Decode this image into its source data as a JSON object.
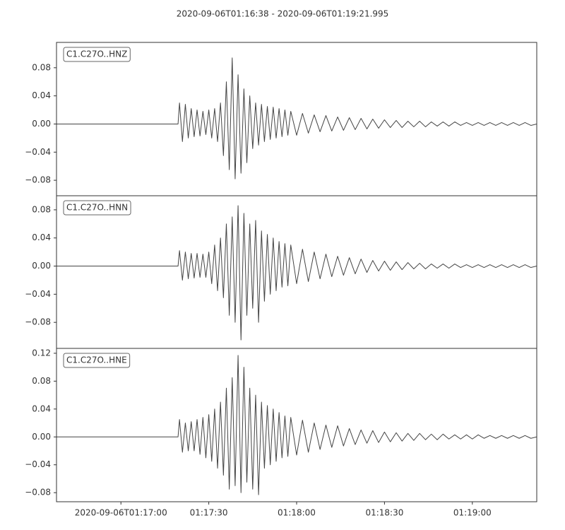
{
  "title": "2020-09-06T01:16:38  -  2020-09-06T01:19:21.995",
  "chart_data": [
    {
      "type": "line",
      "title": "C1.C27O..HNZ",
      "color": "#444444",
      "x": [
        0,
        41.5,
        42,
        43,
        44,
        45,
        46,
        47,
        48,
        49,
        50,
        51,
        52,
        53,
        54,
        55,
        56,
        57,
        58,
        59,
        60,
        61,
        62,
        63,
        64,
        65,
        66,
        67,
        68,
        69,
        70,
        71,
        72,
        73,
        74,
        75,
        76,
        77,
        78,
        79,
        80,
        82,
        84,
        86,
        88,
        90,
        92,
        94,
        96,
        98,
        100,
        102,
        104,
        106,
        108,
        110,
        112,
        114,
        116,
        118,
        120,
        122,
        124,
        126,
        128,
        130,
        132,
        134,
        136,
        138,
        140,
        142,
        144,
        146,
        148,
        150,
        152,
        154,
        156,
        158,
        160,
        162,
        163.995
      ],
      "values": [
        0,
        0,
        0.03,
        -0.025,
        0.028,
        -0.02,
        0.022,
        -0.018,
        0.02,
        -0.017,
        0.018,
        -0.015,
        0.02,
        -0.02,
        0.022,
        -0.025,
        0.03,
        -0.045,
        0.06,
        -0.065,
        0.094,
        -0.078,
        0.07,
        -0.07,
        0.05,
        -0.055,
        0.04,
        -0.035,
        0.03,
        -0.03,
        0.028,
        -0.025,
        0.025,
        -0.022,
        0.024,
        -0.02,
        0.022,
        -0.018,
        0.02,
        -0.016,
        0.018,
        -0.016,
        0.015,
        -0.013,
        0.013,
        -0.011,
        0.012,
        -0.01,
        0.01,
        -0.009,
        0.009,
        -0.008,
        0.008,
        -0.007,
        0.007,
        -0.006,
        0.006,
        -0.005,
        0.005,
        -0.005,
        0.004,
        -0.004,
        0.004,
        -0.004,
        0.003,
        -0.003,
        0.003,
        -0.003,
        0.003,
        -0.002,
        0.002,
        -0.002,
        0.002,
        -0.002,
        0.002,
        -0.002,
        0.002,
        -0.002,
        0.002,
        -0.002,
        0.002,
        -0.002,
        0
      ],
      "xlim": [
        0,
        163.995
      ],
      "ylim": [
        -0.102,
        0.116
      ],
      "yticks": [
        {
          "value": -0.08,
          "label": "−0.08"
        },
        {
          "value": -0.04,
          "label": "−0.04"
        },
        {
          "value": 0,
          "label": "0.00"
        },
        {
          "value": 0.04,
          "label": "0.04"
        },
        {
          "value": 0.08,
          "label": "0.08"
        }
      ]
    },
    {
      "type": "line",
      "title": "C1.C27O..HNN",
      "color": "#444444",
      "x": [
        0,
        41.5,
        42,
        43,
        44,
        45,
        46,
        47,
        48,
        49,
        50,
        51,
        52,
        53,
        54,
        55,
        56,
        57,
        58,
        59,
        60,
        61,
        62,
        63,
        64,
        65,
        66,
        67,
        68,
        69,
        70,
        71,
        72,
        73,
        74,
        75,
        76,
        77,
        78,
        79,
        80,
        82,
        84,
        86,
        88,
        90,
        92,
        94,
        96,
        98,
        100,
        102,
        104,
        106,
        108,
        110,
        112,
        114,
        116,
        118,
        120,
        122,
        124,
        126,
        128,
        130,
        132,
        134,
        136,
        138,
        140,
        142,
        144,
        146,
        148,
        150,
        152,
        154,
        156,
        158,
        160,
        162,
        163.995
      ],
      "values": [
        0,
        0,
        0.022,
        -0.02,
        0.02,
        -0.018,
        0.018,
        -0.017,
        0.018,
        -0.016,
        0.017,
        -0.016,
        0.02,
        -0.025,
        0.03,
        -0.035,
        0.04,
        -0.045,
        0.06,
        -0.07,
        0.07,
        -0.08,
        0.086,
        -0.105,
        0.075,
        -0.07,
        0.06,
        -0.06,
        0.065,
        -0.08,
        0.05,
        -0.05,
        0.045,
        -0.04,
        0.04,
        -0.035,
        0.035,
        -0.03,
        0.032,
        -0.028,
        0.03,
        -0.025,
        0.024,
        -0.022,
        0.02,
        -0.018,
        0.017,
        -0.015,
        0.014,
        -0.013,
        0.012,
        -0.011,
        0.01,
        -0.009,
        0.008,
        -0.007,
        0.007,
        -0.006,
        0.006,
        -0.005,
        0.005,
        -0.004,
        0.004,
        -0.004,
        0.003,
        -0.003,
        0.003,
        -0.003,
        0.003,
        -0.002,
        0.002,
        -0.002,
        0.002,
        -0.002,
        0.002,
        -0.002,
        0.002,
        -0.002,
        0.002,
        -0.002,
        0.002,
        -0.002,
        0
      ],
      "xlim": [
        0,
        163.995
      ],
      "ylim": [
        -0.117,
        0.1
      ],
      "yticks": [
        {
          "value": -0.08,
          "label": "−0.08"
        },
        {
          "value": -0.04,
          "label": "−0.04"
        },
        {
          "value": 0,
          "label": "0.00"
        },
        {
          "value": 0.04,
          "label": "0.04"
        },
        {
          "value": 0.08,
          "label": "0.08"
        }
      ]
    },
    {
      "type": "line",
      "title": "C1.C27O..HNE",
      "color": "#444444",
      "x": [
        0,
        41.5,
        42,
        43,
        44,
        45,
        46,
        47,
        48,
        49,
        50,
        51,
        52,
        53,
        54,
        55,
        56,
        57,
        58,
        59,
        60,
        61,
        62,
        63,
        64,
        65,
        66,
        67,
        68,
        69,
        70,
        71,
        72,
        73,
        74,
        75,
        76,
        77,
        78,
        79,
        80,
        82,
        84,
        86,
        88,
        90,
        92,
        94,
        96,
        98,
        100,
        102,
        104,
        106,
        108,
        110,
        112,
        114,
        116,
        118,
        120,
        122,
        124,
        126,
        128,
        130,
        132,
        134,
        136,
        138,
        140,
        142,
        144,
        146,
        148,
        150,
        152,
        154,
        156,
        158,
        160,
        162,
        163.995
      ],
      "values": [
        0,
        0,
        0.025,
        -0.022,
        0.02,
        -0.02,
        0.022,
        -0.02,
        0.025,
        -0.025,
        0.028,
        -0.03,
        0.032,
        -0.035,
        0.04,
        -0.045,
        0.05,
        -0.055,
        0.07,
        -0.075,
        0.085,
        -0.07,
        0.117,
        -0.08,
        0.1,
        -0.065,
        0.07,
        -0.075,
        0.06,
        -0.083,
        0.05,
        -0.045,
        0.045,
        -0.04,
        0.04,
        -0.035,
        0.035,
        -0.03,
        0.03,
        -0.028,
        0.028,
        -0.026,
        0.024,
        -0.022,
        0.02,
        -0.018,
        0.017,
        -0.015,
        0.016,
        -0.013,
        0.012,
        -0.011,
        0.01,
        -0.009,
        0.009,
        -0.008,
        0.007,
        -0.007,
        0.006,
        -0.006,
        0.005,
        -0.005,
        0.005,
        -0.004,
        0.004,
        -0.004,
        0.004,
        -0.003,
        0.003,
        -0.003,
        0.003,
        -0.003,
        0.003,
        -0.002,
        0.002,
        -0.002,
        0.002,
        -0.002,
        0.002,
        -0.002,
        0.002,
        -0.002,
        0
      ],
      "xlim": [
        0,
        163.995
      ],
      "ylim": [
        -0.093,
        0.127
      ],
      "yticks": [
        {
          "value": -0.08,
          "label": "−0.08"
        },
        {
          "value": -0.04,
          "label": "−0.04"
        },
        {
          "value": 0,
          "label": "0.00"
        },
        {
          "value": 0.04,
          "label": "0.04"
        },
        {
          "value": 0.08,
          "label": "0.08"
        },
        {
          "value": 0.12,
          "label": "0.12"
        }
      ],
      "xticks": [
        {
          "value": 22,
          "label": "2020-09-06T01:17:00"
        },
        {
          "value": 52,
          "label": "01:17:30"
        },
        {
          "value": 82,
          "label": "01:18:00"
        },
        {
          "value": 112,
          "label": "01:18:30"
        },
        {
          "value": 142,
          "label": "01:19:00"
        }
      ]
    }
  ]
}
